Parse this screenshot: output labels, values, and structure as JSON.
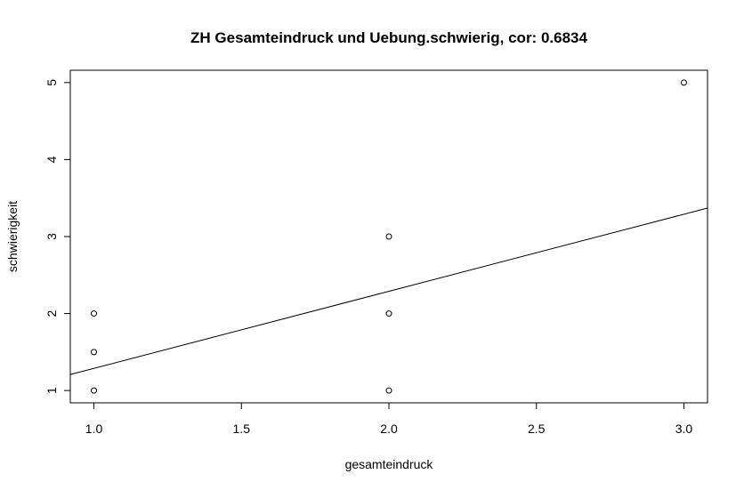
{
  "chart_data": {
    "type": "scatter",
    "title": "ZH Gesamteindruck und Uebung.schwierig, cor: 0.6834",
    "xlabel": "gesamteindruck",
    "ylabel": "schwierigkeit",
    "xlim": [
      0.92,
      3.08
    ],
    "ylim": [
      0.84,
      5.16
    ],
    "xticks": [
      1.0,
      1.5,
      2.0,
      2.5,
      3.0
    ],
    "xtick_labels": [
      "1.0",
      "1.5",
      "2.0",
      "2.5",
      "3.0"
    ],
    "yticks": [
      1,
      2,
      3,
      4,
      5
    ],
    "ytick_labels": [
      "1",
      "2",
      "3",
      "4",
      "5"
    ],
    "grid": false,
    "points": [
      {
        "x": 1.0,
        "y": 1.0
      },
      {
        "x": 1.0,
        "y": 1.5
      },
      {
        "x": 1.0,
        "y": 2.0
      },
      {
        "x": 2.0,
        "y": 1.0
      },
      {
        "x": 2.0,
        "y": 2.0
      },
      {
        "x": 2.0,
        "y": 3.0
      },
      {
        "x": 3.0,
        "y": 5.0
      }
    ],
    "fit_line": {
      "intercept": 0.287,
      "slope": 1.001
    },
    "colors": {
      "points": "#000000",
      "line": "#000000",
      "axes": "#000000"
    }
  }
}
